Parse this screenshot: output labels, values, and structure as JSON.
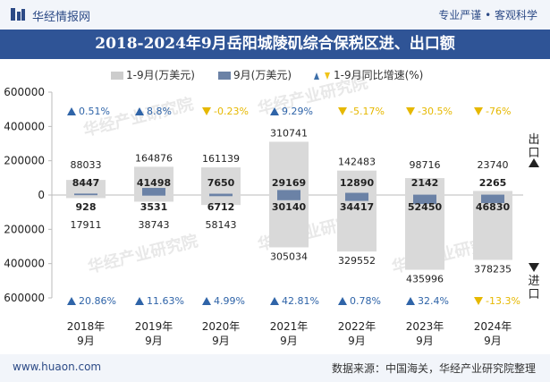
{
  "header": {
    "brand": "华经情报网",
    "slogan": "专业严谨 • 客观科学"
  },
  "title": "2018-2024年9月岳阳城陵矶综合保税区进、出口额",
  "footer": {
    "site": "www.huaon.com",
    "source": "数据来源：中国海关，华经产业研究院整理"
  },
  "watermark": "华经产业研究院",
  "side_labels": {
    "export": "出口",
    "import": "进口"
  },
  "chart_data": {
    "type": "bar",
    "title": "2018-2024年9月岳阳城陵矶综合保税区进、出口额",
    "categories": [
      "2018年9月",
      "2019年9月",
      "2020年9月",
      "2021年9月",
      "2022年9月",
      "2023年9月",
      "2024年9月"
    ],
    "legend": [
      "1-9月(万美元)",
      "9月(万美元)",
      "1-9月同比增速(%)"
    ],
    "ylim": [
      -600000,
      600000
    ],
    "yticks": [
      600000,
      400000,
      200000,
      0,
      -200000,
      -400000,
      -600000
    ],
    "ytick_labels": [
      "600000",
      "400000",
      "200000",
      "0",
      "200000",
      "400000",
      "600000"
    ],
    "series": [
      {
        "name": "出口 1-9月(万美元)",
        "values": [
          88033,
          164876,
          161139,
          310741,
          142483,
          98716,
          23740
        ]
      },
      {
        "name": "出口 9月(万美元)",
        "values": [
          8447,
          41498,
          7650,
          29169,
          12890,
          2142,
          2265
        ]
      },
      {
        "name": "进口 1-9月(万美元)",
        "values": [
          17911,
          38743,
          58143,
          305034,
          329552,
          435996,
          378235
        ]
      },
      {
        "name": "进口 9月(万美元)",
        "values": [
          928,
          3531,
          6712,
          30140,
          34417,
          52450,
          46830
        ]
      }
    ],
    "growth": {
      "export": [
        "0.51%",
        "8.8%",
        "-0.23%",
        "9.29%",
        "-5.17%",
        "-30.5%",
        "-76%"
      ],
      "import": [
        "20.86%",
        "11.63%",
        "4.99%",
        "42.81%",
        "0.78%",
        "32.4%",
        "-13.3%"
      ]
    }
  }
}
